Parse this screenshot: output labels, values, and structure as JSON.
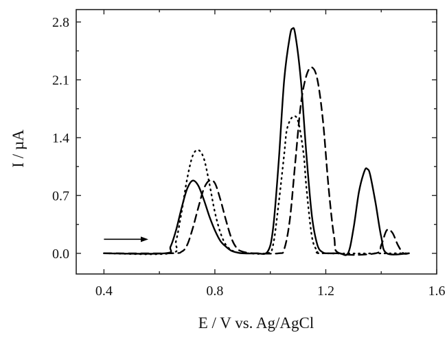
{
  "chart_data": {
    "type": "line",
    "title": "",
    "xlabel": "E / V vs. Ag/AgCl",
    "ylabel": "I / µA",
    "xlim": [
      0.3,
      1.6
    ],
    "ylim": [
      -0.25,
      2.95
    ],
    "x_ticks": [
      0.4,
      0.8,
      1.2,
      1.6
    ],
    "x_tick_labels": [
      "0.4",
      "0.8",
      "1.2",
      "1.6"
    ],
    "y_ticks": [
      0.0,
      0.7,
      1.4,
      2.1,
      2.8
    ],
    "y_tick_labels": [
      "0.0",
      "0.7",
      "1.4",
      "2.1",
      "2.8"
    ],
    "grid": false,
    "legend": "none",
    "annotations": [
      {
        "type": "arrow",
        "direction": "right",
        "x_start": 0.4,
        "x_end": 0.56,
        "y": 0.17
      }
    ],
    "series": [
      {
        "style": "solid",
        "x": [
          0.4,
          0.62,
          0.64,
          0.66,
          0.68,
          0.7,
          0.72,
          0.74,
          0.76,
          0.78,
          0.8,
          0.82,
          0.84,
          0.86,
          0.88,
          0.9,
          0.95,
          0.99,
          1.01,
          1.03,
          1.05,
          1.07,
          1.08,
          1.09,
          1.11,
          1.13,
          1.15,
          1.17,
          1.19,
          1.21,
          1.25,
          1.28,
          1.3,
          1.32,
          1.34,
          1.35,
          1.36,
          1.38,
          1.4,
          1.42,
          1.5
        ],
        "y": [
          0.0,
          0.0,
          0.08,
          0.28,
          0.55,
          0.78,
          0.88,
          0.82,
          0.65,
          0.45,
          0.28,
          0.15,
          0.08,
          0.03,
          0.01,
          0.0,
          0.0,
          0.02,
          0.3,
          1.1,
          2.1,
          2.62,
          2.72,
          2.65,
          2.1,
          1.2,
          0.45,
          0.1,
          0.01,
          0.0,
          0.0,
          0.0,
          0.3,
          0.75,
          1.0,
          1.02,
          0.95,
          0.6,
          0.2,
          0.0,
          0.0
        ]
      },
      {
        "style": "dotted",
        "x": [
          0.4,
          0.64,
          0.66,
          0.68,
          0.7,
          0.72,
          0.74,
          0.76,
          0.78,
          0.8,
          0.82,
          0.84,
          0.86,
          0.88,
          0.92,
          0.99,
          1.01,
          1.03,
          1.05,
          1.06,
          1.08,
          1.1,
          1.12,
          1.13,
          1.15,
          1.17,
          1.19,
          1.5
        ],
        "y": [
          0.0,
          0.0,
          0.15,
          0.5,
          0.9,
          1.18,
          1.25,
          1.15,
          0.85,
          0.5,
          0.25,
          0.1,
          0.04,
          0.01,
          0.0,
          0.0,
          0.1,
          0.6,
          1.2,
          1.5,
          1.65,
          1.6,
          1.2,
          0.8,
          0.2,
          0.03,
          0.0,
          0.0
        ]
      },
      {
        "style": "dashed",
        "x": [
          0.4,
          0.64,
          0.68,
          0.7,
          0.72,
          0.74,
          0.76,
          0.78,
          0.8,
          0.82,
          0.84,
          0.86,
          0.88,
          0.9,
          0.94,
          1.03,
          1.05,
          1.07,
          1.09,
          1.11,
          1.13,
          1.15,
          1.17,
          1.19,
          1.21,
          1.23,
          1.25,
          1.38,
          1.4,
          1.42,
          1.44,
          1.46,
          1.48,
          1.5
        ],
        "y": [
          0.0,
          0.0,
          0.02,
          0.1,
          0.3,
          0.55,
          0.78,
          0.88,
          0.85,
          0.65,
          0.4,
          0.18,
          0.06,
          0.02,
          0.0,
          0.0,
          0.05,
          0.4,
          1.1,
          1.8,
          2.15,
          2.25,
          2.1,
          1.6,
          0.8,
          0.2,
          0.0,
          0.0,
          0.1,
          0.28,
          0.25,
          0.1,
          0.0,
          0.0
        ]
      }
    ]
  }
}
